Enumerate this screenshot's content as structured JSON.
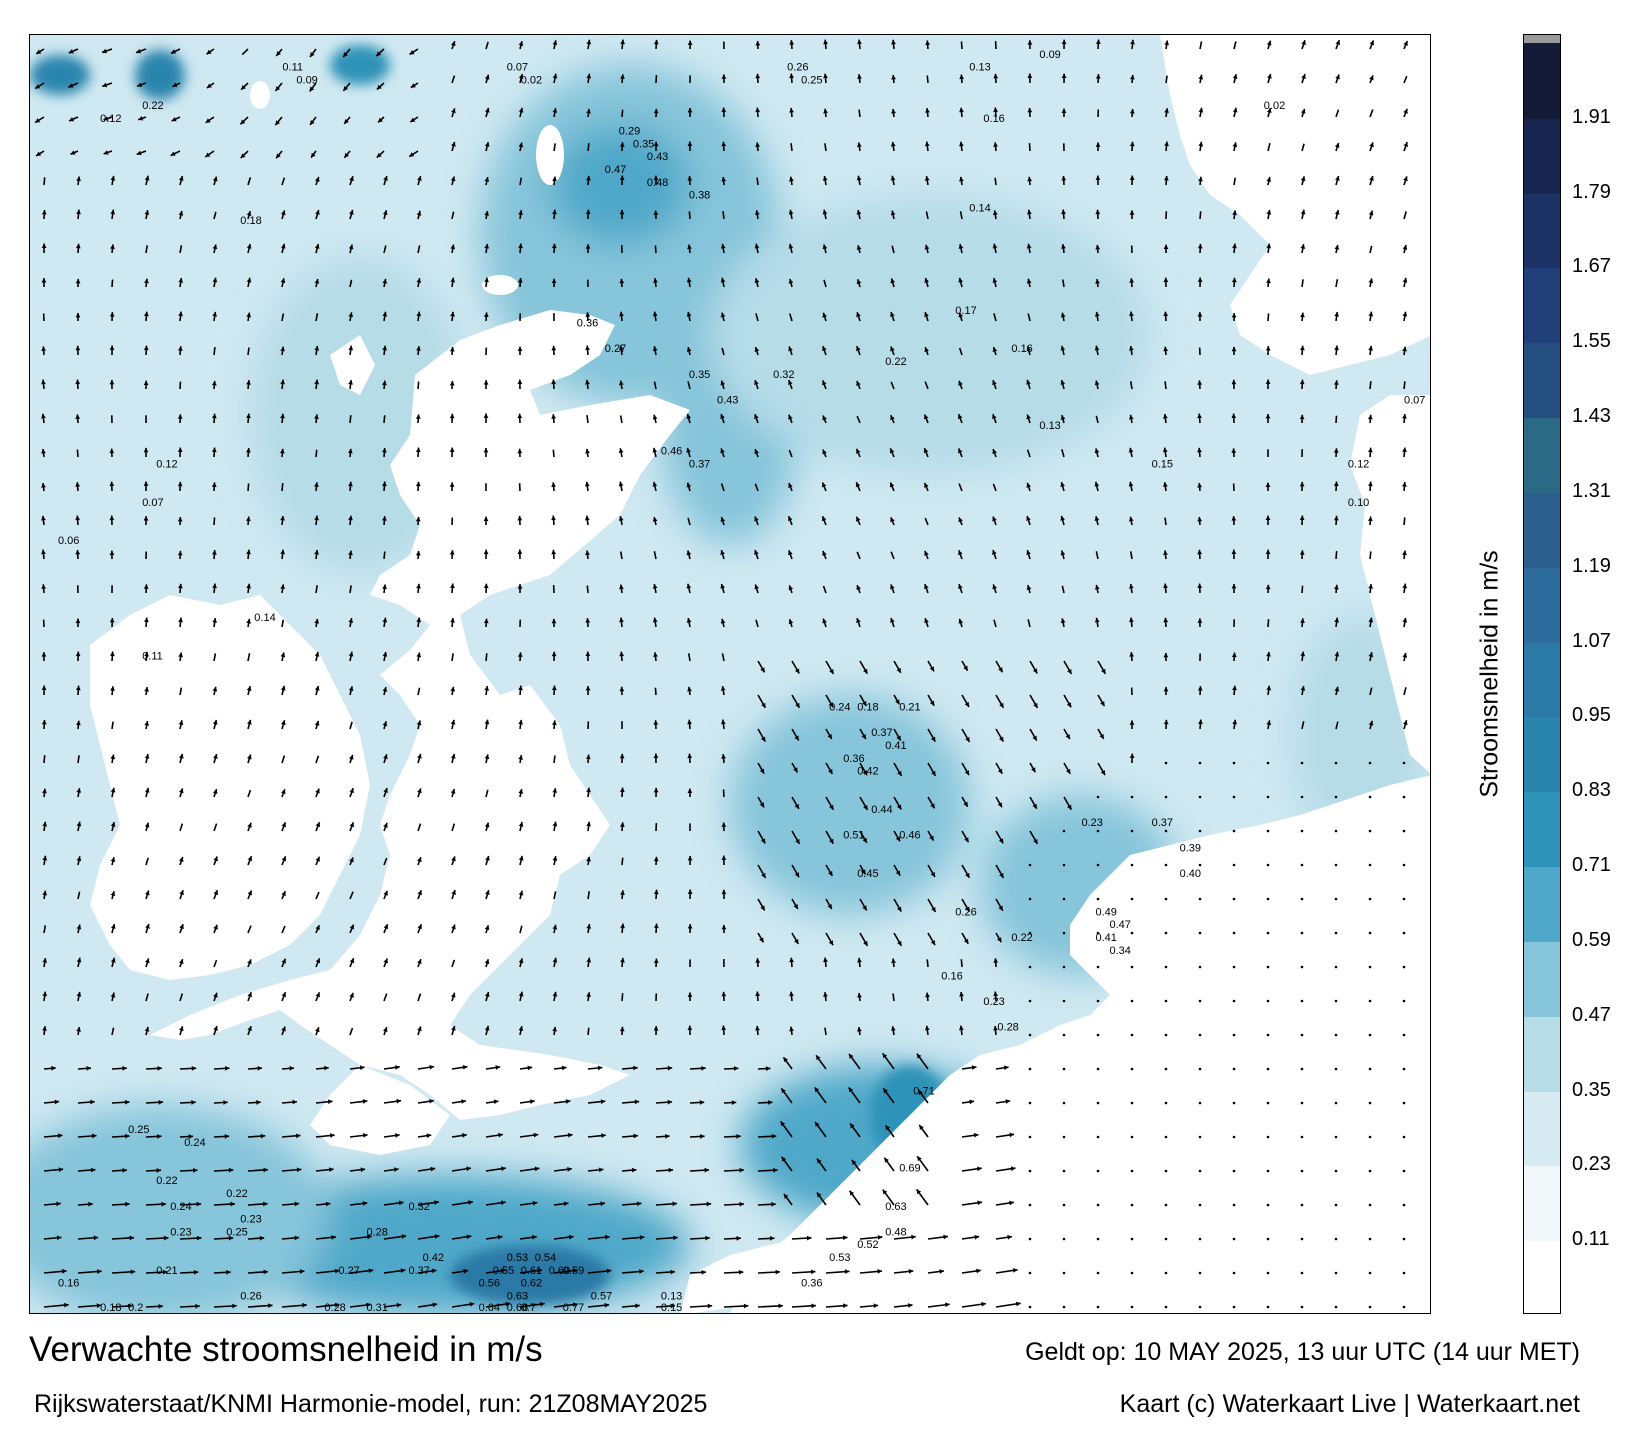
{
  "title": "Verwachte stroomsnelheid in m/s",
  "subtitle": "Rijkswaterstaat/KNMI Harmonie-model, run: 21Z08MAY2025",
  "valid_time": "Geldt op: 10 MAY 2025, 13 uur UTC (14 uur MET)",
  "credit": "Kaart (c) Waterkaart Live | Waterkaart.net",
  "legend": {
    "label": "Stroomsnelheid in m/s",
    "ticks": [
      "0.11",
      "0.23",
      "0.35",
      "0.47",
      "0.59",
      "0.71",
      "0.83",
      "0.95",
      "1.07",
      "1.19",
      "1.31",
      "1.43",
      "1.55",
      "1.67",
      "1.79",
      "1.91"
    ],
    "colors": [
      "#ffffff",
      "#f0f8fa",
      "#d7ecf2",
      "#b6dce8",
      "#86c5da",
      "#4fa8c9",
      "#2e93b8",
      "#2a85ad",
      "#2a79a6",
      "#2f6c9e",
      "#2d5f8e",
      "#2b6a85",
      "#244f7e",
      "#21407a",
      "#1d3366",
      "#17254f",
      "#121a36",
      "#9a9a9a"
    ]
  },
  "map": {
    "land_color": "#ffffff",
    "arrow_color": "#000000",
    "value_labels": [
      {
        "v": "0.11",
        "p": [
          0.18,
          0.02
        ]
      },
      {
        "v": "0.09",
        "p": [
          0.19,
          0.03
        ]
      },
      {
        "v": "0.07",
        "p": [
          0.34,
          0.02
        ]
      },
      {
        "v": "0.02",
        "p": [
          0.35,
          0.03
        ]
      },
      {
        "v": "0.26",
        "p": [
          0.54,
          0.02
        ]
      },
      {
        "v": "0.25",
        "p": [
          0.55,
          0.03
        ]
      },
      {
        "v": "0.13",
        "p": [
          0.67,
          0.02
        ]
      },
      {
        "v": "0.09",
        "p": [
          0.72,
          0.01
        ]
      },
      {
        "v": "0.22",
        "p": [
          0.08,
          0.05
        ]
      },
      {
        "v": "0.12",
        "p": [
          0.05,
          0.06
        ]
      },
      {
        "v": "0.16",
        "p": [
          0.68,
          0.06
        ]
      },
      {
        "v": "0.02",
        "p": [
          0.88,
          0.05
        ]
      },
      {
        "v": "0.29",
        "p": [
          0.42,
          0.07
        ]
      },
      {
        "v": "0.35",
        "p": [
          0.43,
          0.08
        ]
      },
      {
        "v": "0.43",
        "p": [
          0.44,
          0.09
        ]
      },
      {
        "v": "0.47",
        "p": [
          0.41,
          0.1
        ]
      },
      {
        "v": "0.48",
        "p": [
          0.44,
          0.11
        ]
      },
      {
        "v": "0.38",
        "p": [
          0.47,
          0.12
        ]
      },
      {
        "v": "0.18",
        "p": [
          0.15,
          0.14
        ]
      },
      {
        "v": "0.14",
        "p": [
          0.67,
          0.13
        ]
      },
      {
        "v": "0.36",
        "p": [
          0.39,
          0.22
        ]
      },
      {
        "v": "0.27",
        "p": [
          0.41,
          0.24
        ]
      },
      {
        "v": "0.35",
        "p": [
          0.47,
          0.26
        ]
      },
      {
        "v": "0.43",
        "p": [
          0.49,
          0.28
        ]
      },
      {
        "v": "0.46",
        "p": [
          0.45,
          0.32
        ]
      },
      {
        "v": "0.37",
        "p": [
          0.47,
          0.33
        ]
      },
      {
        "v": "0.32",
        "p": [
          0.53,
          0.26
        ]
      },
      {
        "v": "0.22",
        "p": [
          0.61,
          0.25
        ]
      },
      {
        "v": "0.17",
        "p": [
          0.66,
          0.21
        ]
      },
      {
        "v": "0.16",
        "p": [
          0.7,
          0.24
        ]
      },
      {
        "v": "0.13",
        "p": [
          0.72,
          0.3
        ]
      },
      {
        "v": "0.15",
        "p": [
          0.8,
          0.33
        ]
      },
      {
        "v": "0.12",
        "p": [
          0.94,
          0.33
        ]
      },
      {
        "v": "0.07",
        "p": [
          0.98,
          0.28
        ]
      },
      {
        "v": "0.10",
        "p": [
          0.94,
          0.36
        ]
      },
      {
        "v": "0.12",
        "p": [
          0.09,
          0.33
        ]
      },
      {
        "v": "0.07",
        "p": [
          0.08,
          0.36
        ]
      },
      {
        "v": "0.06",
        "p": [
          0.02,
          0.39
        ]
      },
      {
        "v": "0.14",
        "p": [
          0.16,
          0.45
        ]
      },
      {
        "v": "0.11",
        "p": [
          0.08,
          0.48
        ]
      },
      {
        "v": "0.24",
        "p": [
          0.57,
          0.52
        ]
      },
      {
        "v": "0.18",
        "p": [
          0.59,
          0.52
        ]
      },
      {
        "v": "0.21",
        "p": [
          0.62,
          0.52
        ]
      },
      {
        "v": "0.37",
        "p": [
          0.6,
          0.54
        ]
      },
      {
        "v": "0.41",
        "p": [
          0.61,
          0.55
        ]
      },
      {
        "v": "0.36",
        "p": [
          0.58,
          0.56
        ]
      },
      {
        "v": "0.42",
        "p": [
          0.59,
          0.57
        ]
      },
      {
        "v": "0.44",
        "p": [
          0.6,
          0.6
        ]
      },
      {
        "v": "0.51",
        "p": [
          0.58,
          0.62
        ]
      },
      {
        "v": "0.46",
        "p": [
          0.62,
          0.62
        ]
      },
      {
        "v": "0.45",
        "p": [
          0.59,
          0.65
        ]
      },
      {
        "v": "0.23",
        "p": [
          0.75,
          0.61
        ]
      },
      {
        "v": "0.37",
        "p": [
          0.8,
          0.61
        ]
      },
      {
        "v": "0.39",
        "p": [
          0.82,
          0.63
        ]
      },
      {
        "v": "0.40",
        "p": [
          0.82,
          0.65
        ]
      },
      {
        "v": "0.49",
        "p": [
          0.76,
          0.68
        ]
      },
      {
        "v": "0.47",
        "p": [
          0.77,
          0.69
        ]
      },
      {
        "v": "0.41",
        "p": [
          0.76,
          0.7
        ]
      },
      {
        "v": "0.34",
        "p": [
          0.77,
          0.71
        ]
      },
      {
        "v": "0.26",
        "p": [
          0.66,
          0.68
        ]
      },
      {
        "v": "0.22",
        "p": [
          0.7,
          0.7
        ]
      },
      {
        "v": "0.16",
        "p": [
          0.65,
          0.73
        ]
      },
      {
        "v": "0.23",
        "p": [
          0.68,
          0.75
        ]
      },
      {
        "v": "0.28",
        "p": [
          0.69,
          0.77
        ]
      },
      {
        "v": "0.71",
        "p": [
          0.63,
          0.82
        ]
      },
      {
        "v": "0.69",
        "p": [
          0.62,
          0.88
        ]
      },
      {
        "v": "0.63",
        "p": [
          0.61,
          0.91
        ]
      },
      {
        "v": "0.48",
        "p": [
          0.61,
          0.93
        ]
      },
      {
        "v": "0.52",
        "p": [
          0.59,
          0.94
        ]
      },
      {
        "v": "0.53",
        "p": [
          0.57,
          0.95
        ]
      },
      {
        "v": "0.36",
        "p": [
          0.55,
          0.97
        ]
      },
      {
        "v": "0.25",
        "p": [
          0.07,
          0.85
        ]
      },
      {
        "v": "0.24",
        "p": [
          0.11,
          0.86
        ]
      },
      {
        "v": "0.22",
        "p": [
          0.09,
          0.89
        ]
      },
      {
        "v": "0.22",
        "p": [
          0.14,
          0.9
        ]
      },
      {
        "v": "0.24",
        "p": [
          0.1,
          0.91
        ]
      },
      {
        "v": "0.23",
        "p": [
          0.15,
          0.92
        ]
      },
      {
        "v": "0.25",
        "p": [
          0.14,
          0.93
        ]
      },
      {
        "v": "0.23",
        "p": [
          0.1,
          0.93
        ]
      },
      {
        "v": "0.21",
        "p": [
          0.09,
          0.96
        ]
      },
      {
        "v": "0.27",
        "p": [
          0.22,
          0.96
        ]
      },
      {
        "v": "0.26",
        "p": [
          0.15,
          0.98
        ]
      },
      {
        "v": "0.31",
        "p": [
          0.24,
          0.99
        ]
      },
      {
        "v": "0.28",
        "p": [
          0.21,
          1.0
        ]
      },
      {
        "v": "0.16",
        "p": [
          0.02,
          0.97
        ]
      },
      {
        "v": "0.18",
        "p": [
          0.05,
          0.99
        ]
      },
      {
        "v": "0.2",
        "p": [
          0.07,
          0.99
        ]
      },
      {
        "v": "0.32",
        "p": [
          0.27,
          0.91
        ]
      },
      {
        "v": "0.28",
        "p": [
          0.24,
          0.93
        ]
      },
      {
        "v": "0.37",
        "p": [
          0.27,
          0.96
        ]
      },
      {
        "v": "0.42",
        "p": [
          0.28,
          0.95
        ]
      },
      {
        "v": "0.53",
        "p": [
          0.34,
          0.95
        ]
      },
      {
        "v": "0.54",
        "p": [
          0.36,
          0.95
        ]
      },
      {
        "v": "0.55",
        "p": [
          0.33,
          0.96
        ]
      },
      {
        "v": "0.61",
        "p": [
          0.35,
          0.96
        ]
      },
      {
        "v": "0.60",
        "p": [
          0.37,
          0.96
        ]
      },
      {
        "v": "0.59",
        "p": [
          0.38,
          0.96
        ]
      },
      {
        "v": "0.62",
        "p": [
          0.35,
          0.97
        ]
      },
      {
        "v": "0.56",
        "p": [
          0.32,
          0.97
        ]
      },
      {
        "v": "0.57",
        "p": [
          0.4,
          0.98
        ]
      },
      {
        "v": "0.63",
        "p": [
          0.34,
          0.98
        ]
      },
      {
        "v": "0.66",
        "p": [
          0.34,
          0.99
        ]
      },
      {
        "v": "0.7",
        "p": [
          0.35,
          0.99
        ]
      },
      {
        "v": "0.77",
        "p": [
          0.38,
          1.0
        ]
      },
      {
        "v": "0.64",
        "p": [
          0.32,
          1.0
        ]
      },
      {
        "v": "0.13",
        "p": [
          0.45,
          0.98
        ]
      },
      {
        "v": "0.15",
        "p": [
          0.45,
          0.99
        ]
      }
    ]
  }
}
